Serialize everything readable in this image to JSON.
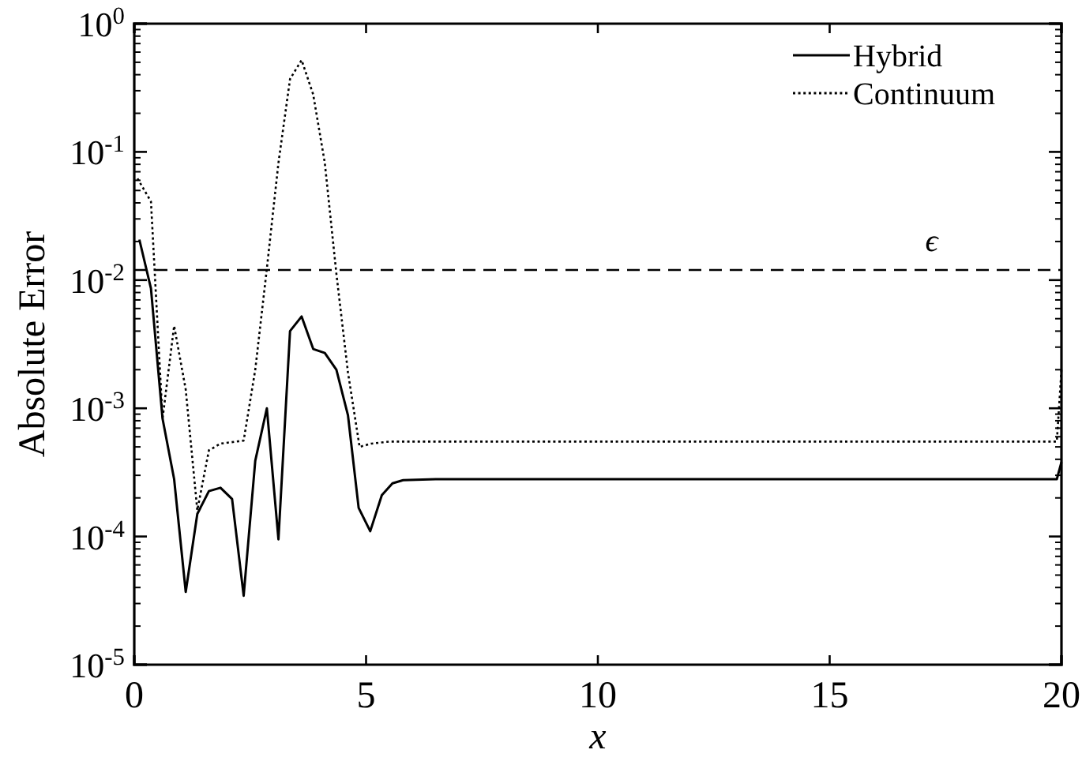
{
  "chart_data": {
    "type": "line",
    "xlabel": "x",
    "ylabel": "Absolute Error",
    "log": "y",
    "grid": false,
    "legend": "top right",
    "marker": "none",
    "xlim": [
      0,
      20
    ],
    "xticks": [
      0,
      5,
      10,
      15,
      20
    ],
    "ylim": [
      1e-05,
      1
    ],
    "yticks": [
      {
        "value": 1e-05,
        "label": "10$^{-5}$"
      },
      {
        "value": 0.0001,
        "label": "10$^{-4}$"
      },
      {
        "value": 0.001,
        "label": "10$^{-3}$"
      },
      {
        "value": 0.01,
        "label": "10$^{-2}$"
      },
      {
        "value": 0.1,
        "label": "10$^{-1}$"
      },
      {
        "value": 1,
        "label": "10$^{0}$"
      }
    ],
    "series": [
      {
        "name": "Hybrid",
        "color": "#000000",
        "line_style": "solid",
        "x": [
          0.11,
          0.36,
          0.61,
          0.86,
          1.11,
          1.36,
          1.61,
          1.86,
          2.11,
          2.36,
          2.61,
          2.86,
          3.11,
          3.36,
          3.61,
          3.86,
          4.11,
          4.36,
          4.61,
          4.84,
          5.09,
          5.34,
          5.57,
          5.8,
          6.5,
          8,
          10,
          15,
          19.9,
          20
        ],
        "values": [
          0.0207,
          0.0086,
          0.00083,
          0.00028,
          3.7e-05,
          0.00015,
          0.000226,
          0.00024,
          0.000196,
          3.45e-05,
          0.00039,
          0.001,
          9.5e-05,
          0.004,
          0.0052,
          0.0029,
          0.0027,
          0.002,
          0.00088,
          0.000167,
          0.00011,
          0.00021,
          0.00026,
          0.000275,
          0.00028,
          0.00028,
          0.00028,
          0.00028,
          0.00028,
          0.00038
        ]
      },
      {
        "name": "Continuum",
        "color": "#000000",
        "line_style": "dotted",
        "x": [
          0.07,
          0.36,
          0.61,
          0.86,
          1.11,
          1.36,
          1.61,
          1.86,
          2.36,
          2.61,
          2.86,
          3.11,
          3.36,
          3.61,
          3.86,
          4.11,
          4.36,
          4.61,
          4.86,
          5.11,
          5.5,
          8,
          10,
          15,
          19.9,
          20
        ],
        "values": [
          0.062,
          0.041,
          0.00083,
          0.0044,
          0.0014,
          0.00016,
          0.00047,
          0.00053,
          0.00056,
          0.002,
          0.0123,
          0.082,
          0.37,
          0.52,
          0.28,
          0.082,
          0.0112,
          0.0019,
          0.0005,
          0.00053,
          0.00055,
          0.00055,
          0.00055,
          0.00055,
          0.00055,
          0.002
        ]
      }
    ],
    "ref_lines": [
      {
        "axis": "y",
        "value": 0.012,
        "label": "ϵ",
        "line_style": "dashed",
        "color": "#000000"
      }
    ]
  }
}
